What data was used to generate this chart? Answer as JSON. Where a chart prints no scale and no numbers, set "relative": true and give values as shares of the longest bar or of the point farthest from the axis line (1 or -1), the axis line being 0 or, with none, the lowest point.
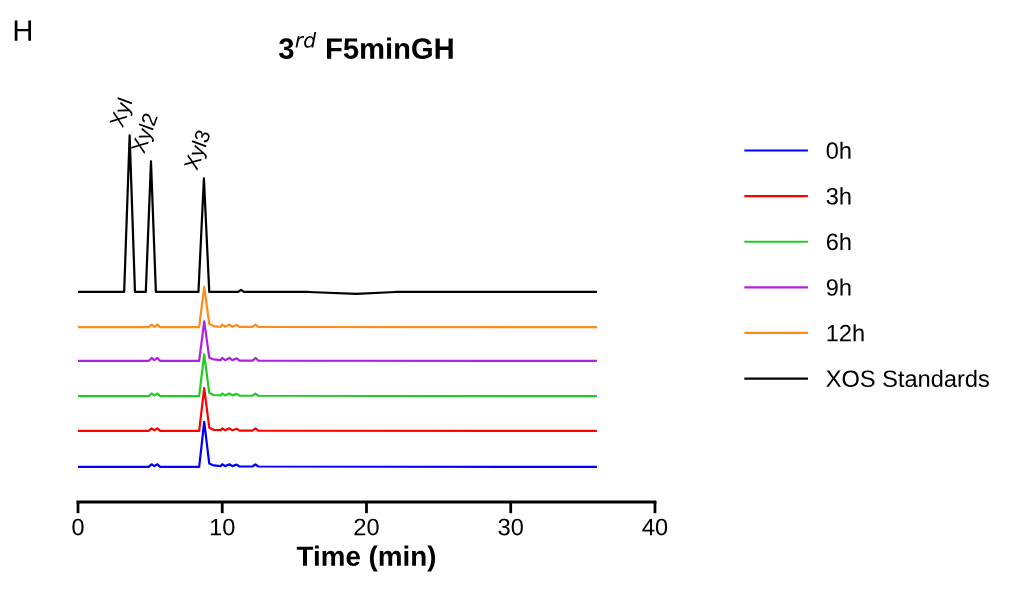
{
  "chart_data": {
    "type": "line",
    "title": "3$^{rd}$ F5minGH",
    "xlabel": "Time (min)",
    "relative": true,
    "xlim": [
      0,
      40
    ],
    "xticks": [
      0,
      10,
      20,
      30,
      40
    ],
    "grid": false,
    "legend": "right",
    "marker": "none",
    "line_style": "solid",
    "tick_labels": "x",
    "annotations": [
      "H",
      {
        "text": "Xyl",
        "x": 3.58,
        "y": 1.0
      },
      {
        "text": "Xyl2",
        "x": 5.06,
        "y": 0.929
      },
      {
        "text": "Xyl3",
        "x": 8.73,
        "y": 0.883
      }
    ],
    "series": [
      {
        "name": "0h",
        "color": "#0000ff",
        "x": [
          0,
          4.9,
          5.1,
          5.3,
          5.5,
          5.7,
          8.4,
          8.75,
          9.1,
          9.4,
          9.9,
          10.0,
          10.2,
          10.5,
          10.7,
          11.0,
          11.2,
          12.1,
          12.3,
          12.5,
          35.9
        ],
        "values": [
          0.096,
          0.096,
          0.103,
          0.098,
          0.103,
          0.096,
          0.096,
          0.219,
          0.105,
          0.1,
          0.098,
          0.103,
          0.098,
          0.103,
          0.098,
          0.102,
          0.097,
          0.097,
          0.103,
          0.097,
          0.096
        ]
      },
      {
        "name": "3h",
        "color": "#ff0000",
        "x": [
          0,
          4.9,
          5.1,
          5.3,
          5.5,
          5.7,
          8.4,
          8.75,
          9.1,
          9.4,
          9.9,
          10.0,
          10.2,
          10.5,
          10.7,
          11.0,
          11.2,
          12.1,
          12.3,
          12.5,
          35.9
        ],
        "values": [
          0.194,
          0.194,
          0.201,
          0.196,
          0.201,
          0.194,
          0.194,
          0.311,
          0.203,
          0.197,
          0.196,
          0.201,
          0.196,
          0.201,
          0.196,
          0.2,
          0.195,
          0.195,
          0.201,
          0.195,
          0.194
        ]
      },
      {
        "name": "6h",
        "color": "#22cc22",
        "x": [
          0,
          4.9,
          5.1,
          5.3,
          5.5,
          5.7,
          8.4,
          8.75,
          9.1,
          9.4,
          9.9,
          10.0,
          10.2,
          10.5,
          10.7,
          11.0,
          11.2,
          12.1,
          12.3,
          12.5,
          35.9
        ],
        "values": [
          0.289,
          0.289,
          0.296,
          0.291,
          0.296,
          0.289,
          0.289,
          0.403,
          0.298,
          0.292,
          0.291,
          0.296,
          0.291,
          0.296,
          0.291,
          0.295,
          0.29,
          0.29,
          0.296,
          0.29,
          0.289
        ]
      },
      {
        "name": "9h",
        "color": "#b020e0",
        "x": [
          0,
          4.9,
          5.1,
          5.3,
          5.5,
          5.7,
          8.4,
          8.75,
          9.1,
          9.4,
          9.9,
          10.0,
          10.2,
          10.5,
          10.7,
          11.0,
          11.2,
          12.1,
          12.3,
          12.5,
          35.9
        ],
        "values": [
          0.385,
          0.385,
          0.393,
          0.387,
          0.393,
          0.385,
          0.385,
          0.493,
          0.394,
          0.389,
          0.387,
          0.393,
          0.387,
          0.393,
          0.387,
          0.392,
          0.386,
          0.386,
          0.393,
          0.386,
          0.385
        ]
      },
      {
        "name": "12h",
        "color": "#ff8c1a",
        "x": [
          0,
          4.9,
          5.1,
          5.3,
          5.5,
          5.7,
          8.4,
          8.75,
          9.1,
          9.4,
          9.9,
          10.0,
          10.2,
          10.5,
          10.7,
          11.0,
          11.2,
          12.1,
          12.3,
          12.5,
          35.9
        ],
        "values": [
          0.477,
          0.477,
          0.484,
          0.478,
          0.484,
          0.477,
          0.477,
          0.587,
          0.486,
          0.48,
          0.478,
          0.484,
          0.478,
          0.484,
          0.478,
          0.483,
          0.478,
          0.478,
          0.484,
          0.478,
          0.477
        ]
      },
      {
        "name": "XOS Standards",
        "color": "#000000",
        "x": [
          0,
          3.2,
          3.58,
          3.95,
          4.7,
          5.06,
          5.4,
          8.35,
          8.73,
          9.1,
          11.1,
          11.3,
          11.5,
          16,
          19.3,
          22,
          35.9
        ],
        "values": [
          0.573,
          0.573,
          1.0,
          0.573,
          0.573,
          0.929,
          0.573,
          0.573,
          0.883,
          0.573,
          0.573,
          0.579,
          0.573,
          0.573,
          0.568,
          0.573,
          0.573
        ]
      }
    ]
  }
}
